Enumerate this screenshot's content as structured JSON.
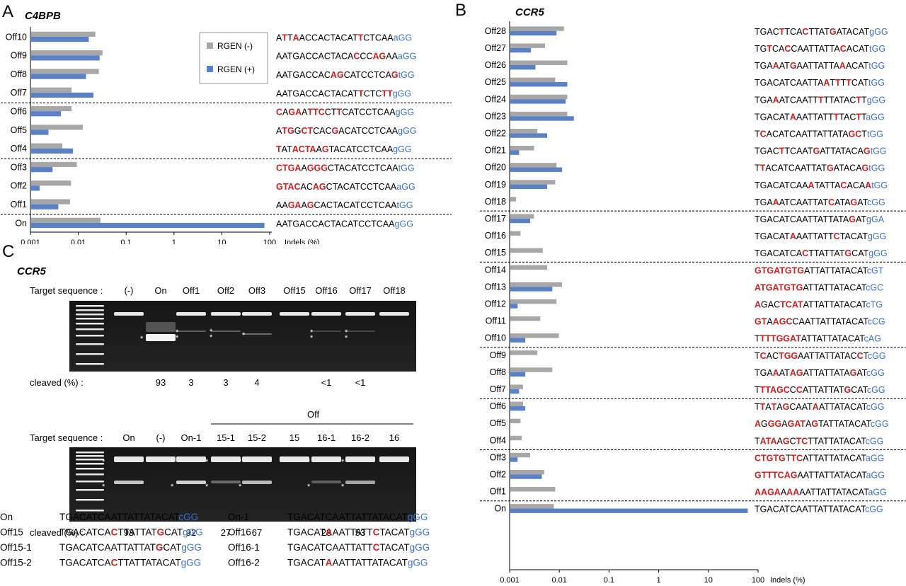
{
  "colors": {
    "gray_bar": "#a7a7a7",
    "blue_bar": "#5a80c6",
    "mismatch": "#d02020",
    "pam": "#3a6fd6"
  },
  "panel_a": {
    "letter": "A",
    "title": "C4BPB",
    "axis_ticks": [
      "0.001",
      "0.01",
      "0.1",
      "1",
      "10",
      "100"
    ],
    "axis_unit": "Indels (%)",
    "legend": [
      "RGEN (-)",
      "RGEN (+)"
    ]
  },
  "panel_b": {
    "letter": "B",
    "title": "CCR5",
    "axis_ticks": [
      "0.001",
      "0.01",
      "0.1",
      "1",
      "10",
      "100"
    ],
    "axis_unit": "Indels (%)"
  },
  "panel_c": {
    "letter": "C",
    "title": "CCR5",
    "gel1": {
      "target_label": "Target sequence :",
      "lanes": [
        "(-)",
        "On",
        "Off1",
        "Off2",
        "Off3",
        "Off15",
        "Off16",
        "Off17",
        "Off18"
      ],
      "cleaved_label": "cleaved (%) :",
      "cleaved": [
        "",
        "93",
        "3",
        "3",
        "4",
        "",
        "<1",
        "<1",
        ""
      ]
    },
    "gel2": {
      "off_label": "Off",
      "target_label": "Target sequence :",
      "lanes": [
        "On",
        "(-)",
        "On-1",
        "15-1",
        "15-2",
        "15",
        "16-1",
        "16-2",
        "16"
      ],
      "cleaved_label": "cleaved (%) :",
      "cleaved": [
        "93",
        "",
        "92",
        "27",
        "67",
        "",
        "28",
        "53",
        ""
      ]
    },
    "seq_table": [
      {
        "name": "On",
        "seq": "TGACATCAATTATTATACATcGG"
      },
      {
        "name": "On-1",
        "seq": "TGACATCAATTATTATACATgGG"
      },
      {
        "name": "Off15",
        "seq": "TGACATCACTTATTATGCATgGG"
      },
      {
        "name": "Off16",
        "seq": "TGACATAAATTATTCTACATgGG"
      },
      {
        "name": "Off15-1",
        "seq": "TGACATCAATTATTATGCATgGG"
      },
      {
        "name": "Off16-1",
        "seq": "TGACATCAATTATTCTACATgGG"
      },
      {
        "name": "Off15-2",
        "seq": "TGACATCACTTATTATACATgGG"
      },
      {
        "name": "Off16-2",
        "seq": "TGACATAAATTATTATACATgGG"
      }
    ]
  },
  "chart_data": [
    {
      "type": "bar",
      "title": "C4BPB",
      "orientation": "horizontal",
      "xlabel": "Indels (%)",
      "xscale": "log",
      "xlim": [
        0.001,
        100
      ],
      "legend": "top-right",
      "categories": [
        "Off10",
        "Off9",
        "Off8",
        "Off7",
        "Off6",
        "Off5",
        "Off4",
        "Off3",
        "Off2",
        "Off1",
        "On"
      ],
      "sequences": [
        "ATTAACCACTACATTCTCAAaGG",
        "AATGACCACTACACCCAGAAaGG",
        "AATGACCACAGCATCCTCAGtGG",
        "AATGACCACTACATTCTCTTgGG",
        "CAGAATTCCTTCATCCTCAAgGG",
        "ATGGCTCACGACATCCTCAAgGG",
        "TATACTAAGTACATCCTCAAgGG",
        "CTGAAGGGCTACATCCTCAAtGG",
        "GTACACAGCTACATCCTCAAaGG",
        "AAGAAGCACTACATCCTCAAtGG",
        "AATGACCACTACATCCTCAAgGG"
      ],
      "series": [
        {
          "name": "RGEN (-)",
          "values": [
            0.022,
            0.031,
            0.026,
            0.007,
            0.007,
            0.012,
            0.0045,
            0.009,
            0.0068,
            0.0065,
            0.028
          ]
        },
        {
          "name": "RGEN (+)",
          "values": [
            0.016,
            0.027,
            0.014,
            0.02,
            0.0042,
            0.0023,
            0.0075,
            0.0028,
            0.0015,
            0.0037,
            75
          ]
        }
      ]
    },
    {
      "type": "bar",
      "title": "CCR5",
      "orientation": "horizontal",
      "xlabel": "Indels (%)",
      "xscale": "log",
      "xlim": [
        0.001,
        100
      ],
      "categories": [
        "Off28",
        "Off27",
        "Off26",
        "Off25",
        "Off24",
        "Off23",
        "Off22",
        "Off21",
        "Off20",
        "Off19",
        "Off18",
        "Off17",
        "Off16",
        "Off15",
        "Off14",
        "Off13",
        "Off12",
        "Off11",
        "Off10",
        "Off9",
        "Off8",
        "Off7",
        "Off6",
        "Off5",
        "Off4",
        "Off3",
        "Off2",
        "Off1",
        "On"
      ],
      "sequences": [
        "TGACTTCACTTATGATACATgGG",
        "TGTCACCAATTATTACACATtGG",
        "TGAAATGAATTATTAAACATtGG",
        "TGACATCAATTAATTTTCATtGG",
        "TGAAATCAATTTTTATACTTgGG",
        "TGACATAAATTATTTTACTTaGG",
        "TCACATCAATTATTATAGCTtGG",
        "TGACTTCAATGATTATACAGtGG",
        "TTACATCAATTATGATACAGtGG",
        "TGACATCAAATATTACACAAtGG",
        "TGAAATCAATTATCATAGATcGG",
        "TGACATCAATTATTATAGATgGA",
        "TGACATAAATTATTCTACATgGG",
        "TGACATCACTTATTATGCATgGG",
        "GTGATGTGATTATTATACATcGT",
        "ATGATGTGATTATTATACATcGC",
        "AGACTCATATTATTATACATcTG",
        "GTAAGCCAATTATTATACATcCG",
        "TTTTGGATATTATTATACATcAG",
        "TCACTGGAATTATTATACCTcGG",
        "TGAAATAGATTATTATAGATcGG",
        "TTTAGCCCATTATTATGCATcGG",
        "TTATAGCAATAATTATACATcGG",
        "AGGGAGATAGTATTATACATcGG",
        "TATAAGCTCTTATTATACATcGG",
        "CTGTGTTCATTATTATACATaGG",
        "GTTTCAGAATTATTATACATaGG",
        "AAGAAAAAATTATTATACATaGG",
        "TGACATCAATTATTATACATcGG"
      ],
      "series": [
        {
          "name": "RGEN (-)",
          "values": [
            0.012,
            0.005,
            0.014,
            0.008,
            0.014,
            0.014,
            0.0035,
            0.003,
            0.0085,
            0.008,
            0.0013,
            0.003,
            0.0016,
            0.0045,
            0.0055,
            0.011,
            0.0085,
            0.004,
            0.0095,
            0.0035,
            0.007,
            0.0018,
            0.0018,
            0.0016,
            0.0017,
            0.0025,
            0.0048,
            0.008,
            0.0075
          ]
        },
        {
          "name": "RGEN (+)",
          "values": [
            0.0085,
            0.0026,
            0.0032,
            0.014,
            0.013,
            0.019,
            0.0055,
            0.0015,
            0.011,
            0.0055,
            null,
            0.0025,
            null,
            null,
            null,
            0.007,
            0.0014,
            null,
            0.002,
            null,
            0.002,
            0.0015,
            0.002,
            null,
            null,
            0.0014,
            0.0043,
            null,
            60
          ]
        }
      ]
    }
  ]
}
